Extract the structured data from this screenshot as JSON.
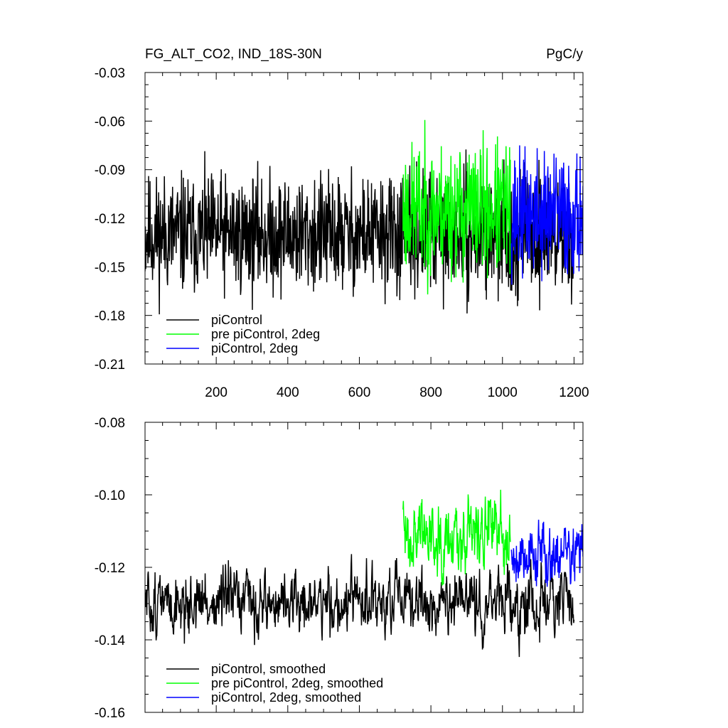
{
  "chart_data": [
    {
      "type": "line",
      "title_left": "FG_ALT_CO2, IND_18S-30N",
      "title_right": "PgC/y",
      "xlim": [
        1,
        1225
      ],
      "ylim": [
        -0.21,
        -0.03
      ],
      "x_ticks": [
        200,
        400,
        600,
        800,
        1000,
        1200
      ],
      "x_tick_labels": [
        "200",
        "400",
        "600",
        "800",
        "1000",
        "1200"
      ],
      "y_ticks": [
        -0.21,
        -0.18,
        -0.15,
        -0.12,
        -0.09,
        -0.06,
        -0.03
      ],
      "y_tick_labels": [
        "-0.21",
        "-0.18",
        "-0.15",
        "-0.12",
        "-0.09",
        "-0.06",
        "-0.03"
      ],
      "legend_position": "bottom-left",
      "series": [
        {
          "name": "piControl",
          "color": "#000000",
          "x_range": [
            1,
            1200
          ],
          "mean": -0.13,
          "spread": 0.018,
          "min": -0.195,
          "max": -0.075,
          "seed": 11
        },
        {
          "name": "pre piControl, 2deg",
          "color": "#00ff00",
          "x_range": [
            722,
            1022
          ],
          "mean": -0.115,
          "spread": 0.02,
          "min": -0.182,
          "max": -0.055,
          "seed": 23
        },
        {
          "name": "piControl, 2deg",
          "color": "#0000ff",
          "x_range": [
            1025,
            1225
          ],
          "mean": -0.118,
          "spread": 0.019,
          "min": -0.17,
          "max": -0.053,
          "seed": 37
        }
      ]
    },
    {
      "type": "line",
      "xlim": [
        1,
        1225
      ],
      "ylim": [
        -0.16,
        -0.08
      ],
      "x_ticks": [
        200,
        400,
        600,
        800,
        1000,
        1200
      ],
      "y_ticks": [
        -0.16,
        -0.14,
        -0.12,
        -0.1,
        -0.08
      ],
      "y_tick_labels": [
        "-0.16",
        "-0.14",
        "-0.12",
        "-0.10",
        "-0.08"
      ],
      "legend_position": "bottom-left",
      "series": [
        {
          "name": "piControl, smoothed",
          "color": "#000000",
          "x_range": [
            1,
            1200
          ],
          "mean": -0.13,
          "spread": 0.006,
          "min": -0.155,
          "max": -0.107,
          "seed": 51
        },
        {
          "name": "pre piControl, 2deg, smoothed",
          "color": "#00ff00",
          "x_range": [
            722,
            1022
          ],
          "mean": -0.11,
          "spread": 0.007,
          "min": -0.13,
          "max": -0.09,
          "seed": 63
        },
        {
          "name": "piControl, 2deg, smoothed",
          "color": "#0000ff",
          "x_range": [
            1025,
            1225
          ],
          "mean": -0.116,
          "spread": 0.006,
          "min": -0.133,
          "max": -0.09,
          "seed": 79
        }
      ]
    }
  ]
}
